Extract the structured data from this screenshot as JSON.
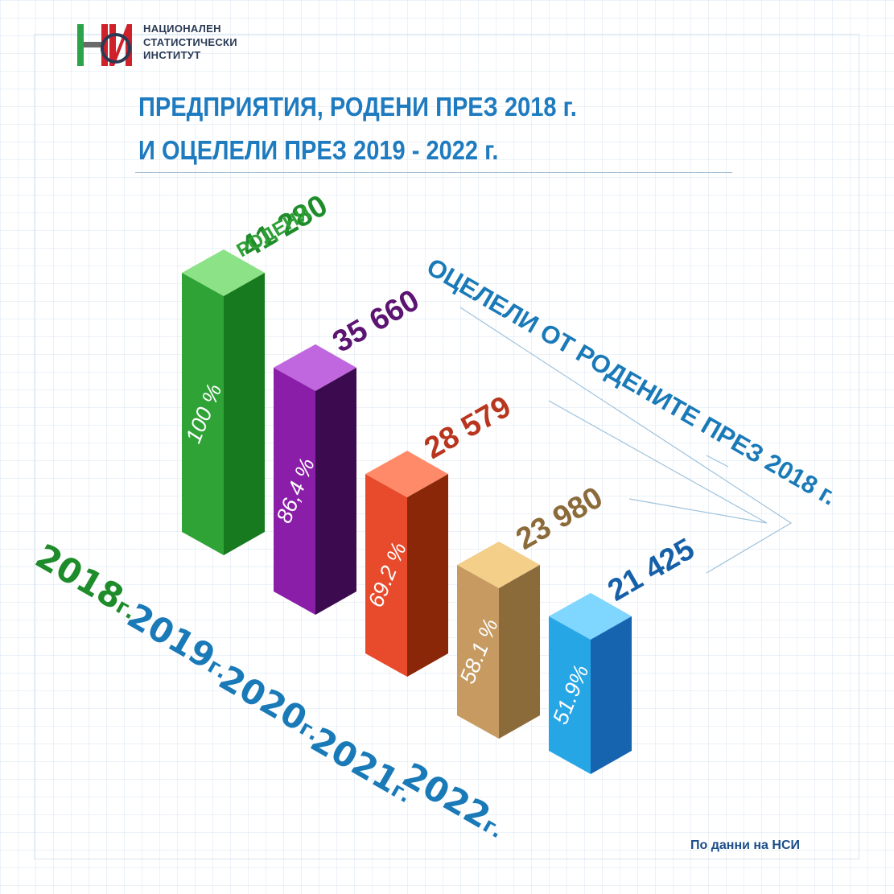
{
  "header": {
    "org_name_lines": [
      "НАЦИОНАЛЕН",
      "СТАТИСТИЧЕСКИ",
      "ИНСТИТУТ"
    ],
    "title_lines": [
      "ПРЕДПРИЯТИЯ, РОДЕНИ ПРЕЗ 2018 г.",
      "И ОЦЕЛЕЛИ ПРЕЗ 2019 - 2022 г."
    ]
  },
  "footer": {
    "source": "По данни на НСИ"
  },
  "chart_data": {
    "type": "bar",
    "title": "ПРЕДПРИЯТИЯ, РОДЕНИ ПРЕЗ 2018 г. И ОЦЕЛЕЛИ ПРЕЗ 2019 - 2022 г.",
    "categories": [
      "2018",
      "2019",
      "2020",
      "2021",
      "2022"
    ],
    "year_suffix": "г.",
    "values": [
      41280,
      35660,
      28579,
      23980,
      21425
    ],
    "value_labels": [
      "41 280",
      "35 660",
      "28 579",
      "23 980",
      "21 425"
    ],
    "percent_labels": [
      "100 %",
      "86,4 %",
      "69.2 %",
      "58.1 %",
      "51.9%"
    ],
    "annotations": {
      "born": "РОДЕНИ",
      "survived": "ОЦЕЛЕЛИ ОТ РОДЕНИТЕ ПРЕЗ 2018 г."
    },
    "colors": [
      {
        "front": "#2fa336",
        "side": "#187a1e",
        "top": "#8ce286",
        "label": "#1e8c2a"
      },
      {
        "front": "#8a1ea8",
        "side": "#3c0a4e",
        "top": "#c067df",
        "label": "#5c1472"
      },
      {
        "front": "#e84a2c",
        "side": "#8a2708",
        "top": "#ff8a6a",
        "label": "#b8361e"
      },
      {
        "front": "#c69a60",
        "side": "#8c6b3a",
        "top": "#f3cf8a",
        "label": "#8c6b3a"
      },
      {
        "front": "#27a6e6",
        "side": "#1664b0",
        "top": "#7fd6ff",
        "label": "#1560a8"
      }
    ],
    "year_label_colors": [
      "#1e8c2a",
      "#1a7ab8",
      "#1a7ab8",
      "#1a7ab8",
      "#1a7ab8"
    ],
    "annotation_color": "#1a7ab8"
  }
}
